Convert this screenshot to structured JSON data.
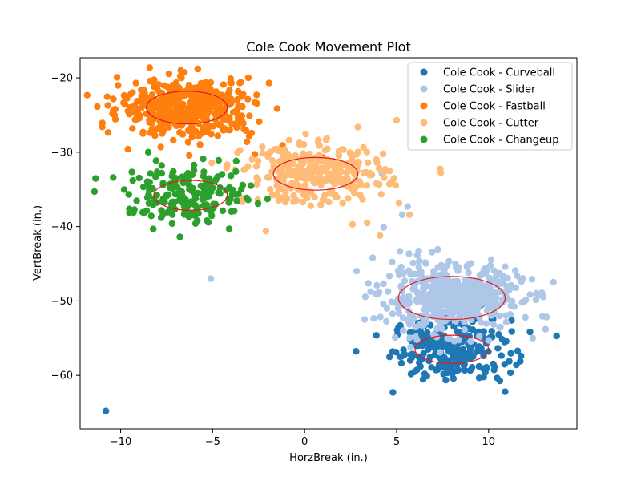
{
  "chart_data": {
    "type": "scatter",
    "title": "Cole Cook Movement Plot",
    "xlabel": "HorzBreak (in.)",
    "ylabel": "VertBreak (in.)",
    "xlim": [
      -12.2,
      14.8
    ],
    "ylim": [
      -67.2,
      -17.3
    ],
    "xticks": [
      -10,
      -5,
      0,
      5,
      10
    ],
    "yticks": [
      -20,
      -30,
      -40,
      -50,
      -60
    ],
    "grid": false,
    "legend": "top-right",
    "ellipse_color": "#e31a1c",
    "series": [
      {
        "name": "Cole Cook - Curveball",
        "color": "#1f77b4",
        "center": [
          8.0,
          -56.5
        ],
        "spread": [
          1.6,
          2.0
        ],
        "count": 240,
        "ellipse": [
          8.0,
          -56.5,
          2.0,
          1.9
        ],
        "outliers": [
          [
            -10.8,
            -64.8
          ],
          [
            13.7,
            -54.7
          ],
          [
            4.8,
            -62.3
          ],
          [
            5.2,
            -53.3
          ],
          [
            10.9,
            -62.2
          ]
        ]
      },
      {
        "name": "Cole Cook - Slider",
        "color": "#aec7e8",
        "center": [
          8.0,
          -49.6
        ],
        "spread": [
          1.9,
          2.2
        ],
        "count": 520,
        "ellipse": [
          8.0,
          -49.6,
          2.9,
          2.9
        ],
        "outliers": [
          [
            -5.1,
            -47.0
          ],
          [
            4.2,
            -32.9
          ],
          [
            3.7,
            -44.2
          ],
          [
            4.3,
            -40.1
          ],
          [
            5.3,
            -38.4
          ],
          [
            5.6,
            -37.3
          ],
          [
            13.1,
            -53.8
          ],
          [
            12.4,
            -55.0
          ],
          [
            6.2,
            -43.3
          ],
          [
            5.9,
            -44.9
          ]
        ]
      },
      {
        "name": "Cole Cook - Fastball",
        "color": "#ff7f0e",
        "center": [
          -6.4,
          -24.0
        ],
        "spread": [
          1.8,
          1.9
        ],
        "count": 460,
        "ellipse": [
          -6.4,
          -24.0,
          2.2,
          2.2
        ],
        "outliers": [
          [
            -11.0,
            -26.6
          ],
          [
            -10.4,
            -24.4
          ],
          [
            -9.6,
            -29.6
          ],
          [
            -3.3,
            -26.9
          ],
          [
            -2.7,
            -30.3
          ],
          [
            -1.2,
            -29.1
          ],
          [
            0.7,
            -31.0
          ],
          [
            1.0,
            -30.7
          ],
          [
            1.3,
            -31.2
          ],
          [
            -3.0,
            -25.1
          ]
        ]
      },
      {
        "name": "Cole Cook - Cutter",
        "color": "#ffbb78",
        "center": [
          0.6,
          -32.9
        ],
        "spread": [
          1.9,
          1.9
        ],
        "count": 330,
        "ellipse": [
          0.6,
          -32.9,
          2.3,
          2.2
        ],
        "outliers": [
          [
            -2.1,
            -40.6
          ],
          [
            5.0,
            -25.7
          ],
          [
            5.7,
            -38.4
          ],
          [
            4.1,
            -41.2
          ],
          [
            3.4,
            -39.5
          ],
          [
            2.6,
            -39.7
          ],
          [
            3.9,
            -34.2
          ],
          [
            -1.4,
            -29.8
          ],
          [
            -2.3,
            -29.3
          ]
        ]
      },
      {
        "name": "Cole Cook - Changeup",
        "color": "#2ca02c",
        "center": [
          -6.2,
          -35.8
        ],
        "spread": [
          1.7,
          1.9
        ],
        "count": 190,
        "ellipse": [
          -6.2,
          -35.8,
          2.0,
          2.0
        ],
        "outliers": [
          [
            -9.3,
            -38.1
          ],
          [
            -7.2,
            -39.6
          ],
          [
            -5.3,
            -39.2
          ],
          [
            -8.5,
            -30.0
          ],
          [
            -3.6,
            -35.6
          ],
          [
            -4.1,
            -40.3
          ],
          [
            -10.4,
            -33.4
          ]
        ]
      }
    ]
  }
}
